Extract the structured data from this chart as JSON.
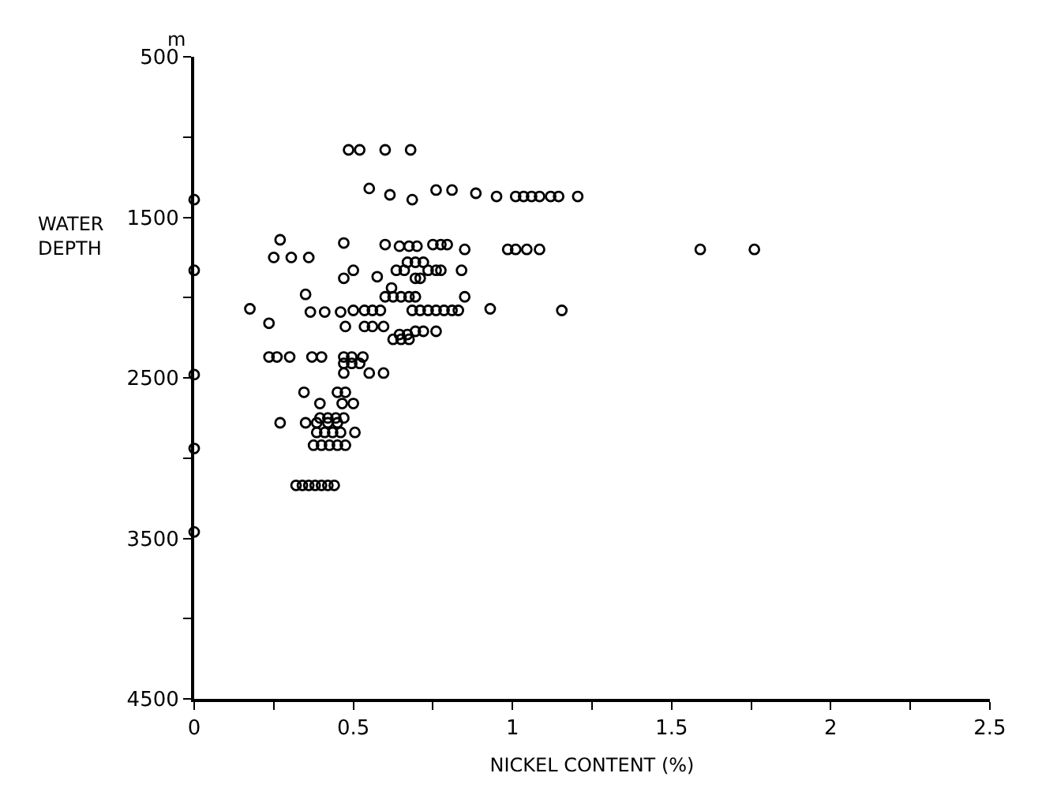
{
  "chart_data": {
    "type": "scatter",
    "xlabel": "NICKEL CONTENT (%)",
    "ylabel": "WATER DEPTH",
    "annotations": [
      "m"
    ],
    "xlim": [
      0,
      2.5
    ],
    "xticks": [
      0,
      {
        "value": 0.25,
        "label": null
      },
      0.5,
      {
        "value": 0.75,
        "label": null
      },
      1,
      {
        "value": 1.25,
        "label": null
      },
      1.5,
      {
        "value": 1.75,
        "label": null
      },
      2,
      {
        "value": 2.25,
        "label": null
      },
      2.5
    ],
    "ylim": [
      4500,
      500
    ],
    "yticks": [
      500,
      {
        "value": 1000,
        "label": null
      },
      1500,
      {
        "value": 2000,
        "label": null
      },
      2500,
      {
        "value": 3000,
        "label": null
      },
      3500,
      {
        "value": 4000,
        "label": null
      },
      4500
    ],
    "grid": false,
    "marker": "circle",
    "series": [
      {
        "color": "#000000",
        "x": [
          0.485,
          0.52,
          0.6,
          0.68,
          0.55,
          0.615,
          0.685,
          0.76,
          0.81,
          0.885,
          0.95,
          1.01,
          1.035,
          1.06,
          1.085,
          1.12,
          1.145,
          1.205,
          0,
          0,
          0,
          0,
          0,
          0.27,
          0.47,
          0.6,
          0.645,
          0.675,
          0.7,
          0.75,
          0.775,
          0.795,
          0.85,
          0.985,
          1.01,
          1.045,
          1.085,
          1.59,
          1.76,
          0.25,
          0.305,
          0.36,
          0.67,
          0.695,
          0.72,
          0.5,
          0.635,
          0.66,
          0.735,
          0.76,
          0.775,
          0.84,
          0.47,
          0.575,
          0.695,
          0.71,
          0.62,
          0.35,
          0.6,
          0.625,
          0.65,
          0.675,
          0.695,
          0.85,
          0.175,
          0.365,
          0.41,
          0.46,
          0.5,
          0.535,
          0.56,
          0.585,
          0.685,
          0.71,
          0.735,
          0.76,
          0.785,
          0.81,
          0.83,
          0.93,
          1.155,
          0.235,
          0.475,
          0.535,
          0.56,
          0.595,
          0.645,
          0.67,
          0.695,
          0.72,
          0.76,
          0.625,
          0.65,
          0.675,
          0.235,
          0.26,
          0.3,
          0.37,
          0.4,
          0.47,
          0.495,
          0.53,
          0.47,
          0.495,
          0.52,
          0.47,
          0.55,
          0.595,
          0.345,
          0.45,
          0.475,
          0.395,
          0.465,
          0.5,
          0.395,
          0.42,
          0.445,
          0.47,
          0.27,
          0.35,
          0.385,
          0.42,
          0.45,
          0.385,
          0.41,
          0.435,
          0.46,
          0.505,
          0.375,
          0.4,
          0.425,
          0.45,
          0.475,
          0.32,
          0.34,
          0.36,
          0.38,
          0.4,
          0.42,
          0.44
        ],
        "values": [
          1080,
          1080,
          1080,
          1080,
          1320,
          1360,
          1390,
          1330,
          1330,
          1350,
          1370,
          1370,
          1370,
          1370,
          1370,
          1370,
          1370,
          1370,
          1390,
          1830,
          2480,
          2940,
          3460,
          1640,
          1660,
          1670,
          1680,
          1680,
          1680,
          1670,
          1670,
          1670,
          1700,
          1700,
          1700,
          1700,
          1700,
          1700,
          1700,
          1750,
          1750,
          1750,
          1780,
          1780,
          1780,
          1830,
          1830,
          1830,
          1830,
          1830,
          1830,
          1830,
          1880,
          1870,
          1880,
          1880,
          1940,
          1980,
          1995,
          1995,
          1995,
          1995,
          1995,
          1995,
          2070,
          2090,
          2090,
          2090,
          2080,
          2080,
          2080,
          2080,
          2080,
          2080,
          2080,
          2080,
          2080,
          2080,
          2080,
          2070,
          2080,
          2160,
          2180,
          2180,
          2180,
          2180,
          2230,
          2230,
          2210,
          2210,
          2210,
          2260,
          2260,
          2260,
          2370,
          2370,
          2370,
          2370,
          2370,
          2370,
          2370,
          2370,
          2410,
          2410,
          2410,
          2470,
          2470,
          2470,
          2590,
          2590,
          2590,
          2660,
          2660,
          2660,
          2750,
          2750,
          2750,
          2750,
          2780,
          2780,
          2780,
          2780,
          2780,
          2840,
          2840,
          2840,
          2840,
          2840,
          2920,
          2920,
          2920,
          2920,
          2920,
          3170,
          3170,
          3170,
          3170,
          3170,
          3170,
          3170
        ]
      }
    ]
  }
}
